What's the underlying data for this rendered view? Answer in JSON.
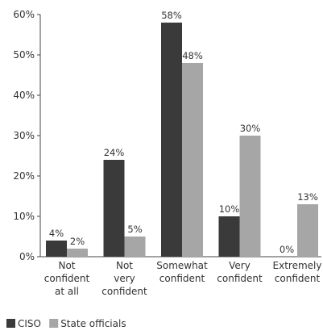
{
  "chart_data": {
    "type": "bar",
    "categories": [
      [
        "Not",
        "confident",
        "at all"
      ],
      [
        "Not",
        "very",
        "confident"
      ],
      [
        "Somewhat",
        "confident"
      ],
      [
        "Very",
        "confident"
      ],
      [
        "Extremely",
        "confident"
      ]
    ],
    "series": [
      {
        "name": "CISO",
        "color": "#3a3a3a",
        "values": [
          4,
          24,
          58,
          10,
          0
        ],
        "labels": [
          "4%",
          "24%",
          "58%",
          "10%",
          "0%"
        ]
      },
      {
        "name": "State officials",
        "color": "#a6a6a6",
        "values": [
          2,
          5,
          48,
          30,
          13
        ],
        "labels": [
          "2%",
          "5%",
          "48%",
          "30%",
          "13%"
        ]
      }
    ],
    "ylim": [
      0,
      60
    ],
    "yticks": [
      0,
      10,
      20,
      30,
      40,
      50,
      60
    ],
    "ytick_labels": [
      "0%",
      "10%",
      "20%",
      "30%",
      "40%",
      "50%",
      "60%"
    ],
    "grid": false,
    "legend_position": "bottom-left"
  }
}
